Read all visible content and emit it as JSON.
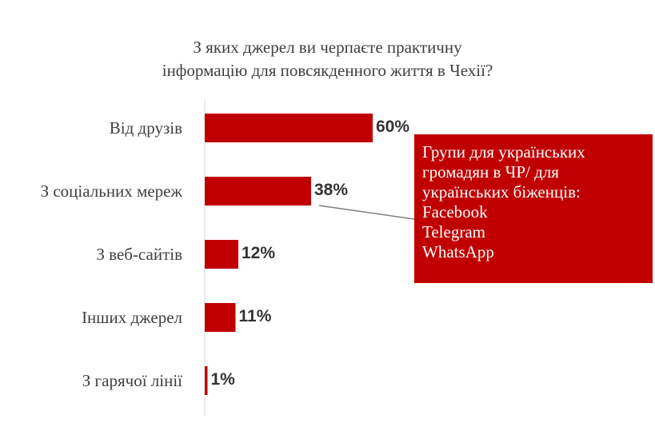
{
  "chart_data": {
    "type": "bar",
    "orientation": "horizontal",
    "title": "З яких джерел ви черпаєте практичну інформацію для повсякденного життя в Чехії?",
    "title_lines": [
      "З яких джерел ви черпаєте практичну",
      "інформацію для повсякденного життя в Чехії?"
    ],
    "categories": [
      "Від друзів",
      "З соціальних мереж",
      "З веб-сайтів",
      "Інших джерел",
      "З гарячої лінії"
    ],
    "values": [
      60,
      38,
      12,
      11,
      1
    ],
    "data_labels": [
      "60%",
      "38%",
      "12%",
      "11%",
      "1%"
    ],
    "unit": "%",
    "xlim": [
      0,
      100
    ],
    "bar_color": "#c00000",
    "grid": false,
    "legend": "none",
    "annotation": {
      "target_category": "З соціальних мереж",
      "lines": [
        "Групи для українських",
        "громадян в ЧР/ для",
        "українських біженців:",
        "Facebook",
        "Telegram",
        "WhatsApp"
      ],
      "background": "#c00000",
      "text_color": "#ffffff"
    }
  }
}
